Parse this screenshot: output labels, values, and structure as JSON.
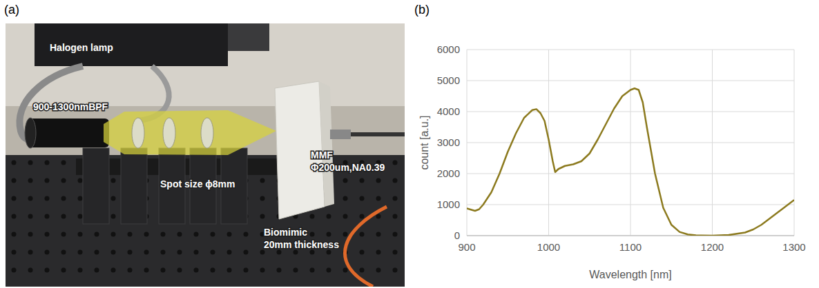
{
  "photo_panel": {
    "panel_label": "(a)",
    "labels": [
      "Halogen lamp",
      "900-1300nmBPF",
      "MMF",
      "Φ200um,NA0.39",
      "Spot size ϕ8mm",
      "Biomimic",
      "20mm thickness"
    ]
  },
  "chart_data": {
    "type": "line",
    "panel_label": "(b)",
    "x": [
      900,
      905,
      910,
      915,
      920,
      930,
      940,
      950,
      960,
      970,
      980,
      985,
      990,
      995,
      1000,
      1005,
      1008,
      1012,
      1020,
      1030,
      1040,
      1050,
      1060,
      1070,
      1080,
      1090,
      1100,
      1105,
      1110,
      1115,
      1120,
      1130,
      1140,
      1150,
      1160,
      1170,
      1180,
      1200,
      1220,
      1240,
      1250,
      1260,
      1270,
      1280,
      1290,
      1300
    ],
    "values": [
      880,
      840,
      800,
      850,
      1000,
      1400,
      2000,
      2700,
      3300,
      3800,
      4050,
      4080,
      3950,
      3700,
      3100,
      2400,
      2050,
      2150,
      2250,
      2300,
      2400,
      2650,
      3100,
      3600,
      4100,
      4500,
      4700,
      4750,
      4700,
      4300,
      3500,
      2000,
      900,
      350,
      120,
      40,
      10,
      0,
      20,
      100,
      200,
      350,
      550,
      750,
      950,
      1150
    ],
    "color": "#8c7a1e",
    "xlabel": "Wavelength [nm]",
    "ylabel": "count [a.u.]",
    "xlim": [
      900,
      1300
    ],
    "xticks": [
      900,
      1000,
      1100,
      1200,
      1300
    ],
    "ylim": [
      0,
      6000
    ],
    "yticks": [
      0,
      1000,
      2000,
      3000,
      4000,
      5000,
      6000
    ],
    "grid": true
  }
}
